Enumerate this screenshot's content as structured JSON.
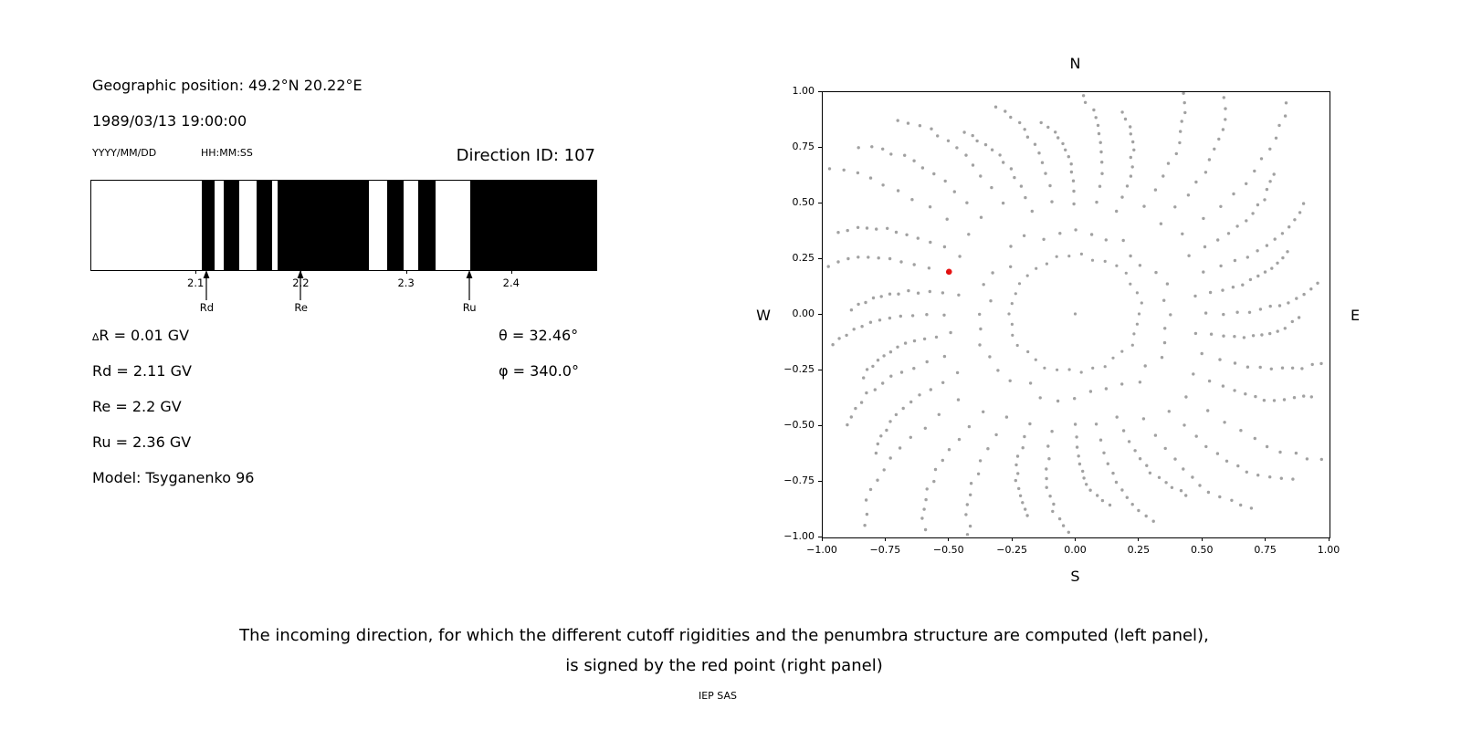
{
  "left": {
    "geographic_position": "Geographic position: 49.2°N 20.22°E",
    "datetime": "1989/03/13 19:00:00",
    "date_format_label": "YYYY/MM/DD",
    "time_format_label": "HH:MM:SS",
    "direction_id": "Direction ID: 107",
    "delta_r_symbol": "∆",
    "delta_r_text": "R = 0.01 GV",
    "rd": "Rd = 2.11 GV",
    "re": "Re = 2.2 GV",
    "ru": "Ru = 2.36 GV",
    "model": "Model: Tsyganenko 96",
    "theta": "θ = 32.46°",
    "phi": "φ = 340.0°"
  },
  "caption": {
    "line1": "The incoming direction, for which the different cutoff rigidities and the penumbra structure are computed (left panel),",
    "line2": "is signed by the red point (right panel)",
    "credit": "IEP SAS"
  },
  "chart_data": [
    {
      "type": "bar",
      "name": "penumbra-structure",
      "x_min": 2.0,
      "x_max": 2.48,
      "x_tick_values": [
        2.1,
        2.2,
        2.3,
        2.4
      ],
      "x_tick_labels": [
        "2.1",
        "2.2",
        "2.3",
        "2.4"
      ],
      "forbidden_bands_gv": [
        [
          2.105,
          2.117
        ],
        [
          2.126,
          2.141
        ],
        [
          2.157,
          2.172
        ],
        [
          2.177,
          2.264
        ],
        [
          2.281,
          2.297
        ],
        [
          2.311,
          2.327
        ],
        [
          2.36,
          2.48
        ]
      ],
      "markers": [
        {
          "label": "Rd",
          "value_gv": 2.11
        },
        {
          "label": "Re",
          "value_gv": 2.2
        },
        {
          "label": "Ru",
          "value_gv": 2.36
        }
      ],
      "band_color": "#000000"
    },
    {
      "type": "scatter",
      "name": "incoming-directions",
      "xlim": [
        -1,
        1
      ],
      "ylim": [
        -1,
        1
      ],
      "x_tick_values": [
        -1.0,
        -0.75,
        -0.5,
        -0.25,
        0.0,
        0.25,
        0.5,
        0.75,
        1.0
      ],
      "x_tick_labels": [
        "−1.00",
        "−0.75",
        "−0.50",
        "−0.25",
        "0.00",
        "0.25",
        "0.50",
        "0.75",
        "1.00"
      ],
      "y_tick_values": [
        -1.0,
        -0.75,
        -0.5,
        -0.25,
        0.0,
        0.25,
        0.5,
        0.75,
        1.0
      ],
      "y_tick_labels": [
        "−1.00",
        "−0.75",
        "−0.50",
        "−0.25",
        "0.00",
        "0.25",
        "0.50",
        "0.75",
        "1.00"
      ],
      "compass": {
        "top": "N",
        "bottom": "S",
        "left": "W",
        "right": "E"
      },
      "dot_color": "#999999",
      "selected_point": {
        "x": -0.5,
        "y": 0.19,
        "color": "#e50000"
      },
      "pattern": {
        "spokes": 36,
        "spoke_inner_radius": 0.37,
        "spoke_outer_radius": 1.42,
        "dots_per_spoke": 13,
        "inner_ring_radius": 0.26,
        "inner_ring_dots": 34,
        "center_dot": true
      }
    }
  ]
}
